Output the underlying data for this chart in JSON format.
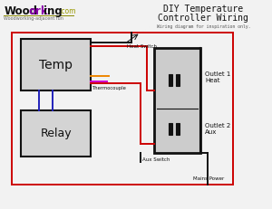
{
  "bg_color": "#f2f2f2",
  "title_line1": "DIY Temperature",
  "title_line2": "Controller Wiring",
  "subtitle": "Wiring diagram for inspiration only.",
  "brand_woodork": "Woodorking",
  "brand_com": ".com",
  "brand_sub": "Woodworking-adjacent fun",
  "label_temp": "Temp",
  "label_relay": "Relay",
  "label_outlet1": "Outlet 1\nHeat",
  "label_outlet2": "Outlet 2\nAux",
  "label_thermocouple": "Thermocouple",
  "label_heat_switch": "Heat Switch",
  "label_aux_switch": "Aux Switch",
  "label_mains": "Mains Power",
  "color_red": "#cc0000",
  "color_blue": "#2222bb",
  "color_orange": "#ee8800",
  "color_magenta": "#cc00cc",
  "color_black": "#111111",
  "color_box_fill": "#d4d4d4",
  "color_outlet_fill": "#cccccc",
  "color_logo_purple": "#8800aa",
  "color_logo_underline": "#888800",
  "color_logo_sub": "#666666"
}
